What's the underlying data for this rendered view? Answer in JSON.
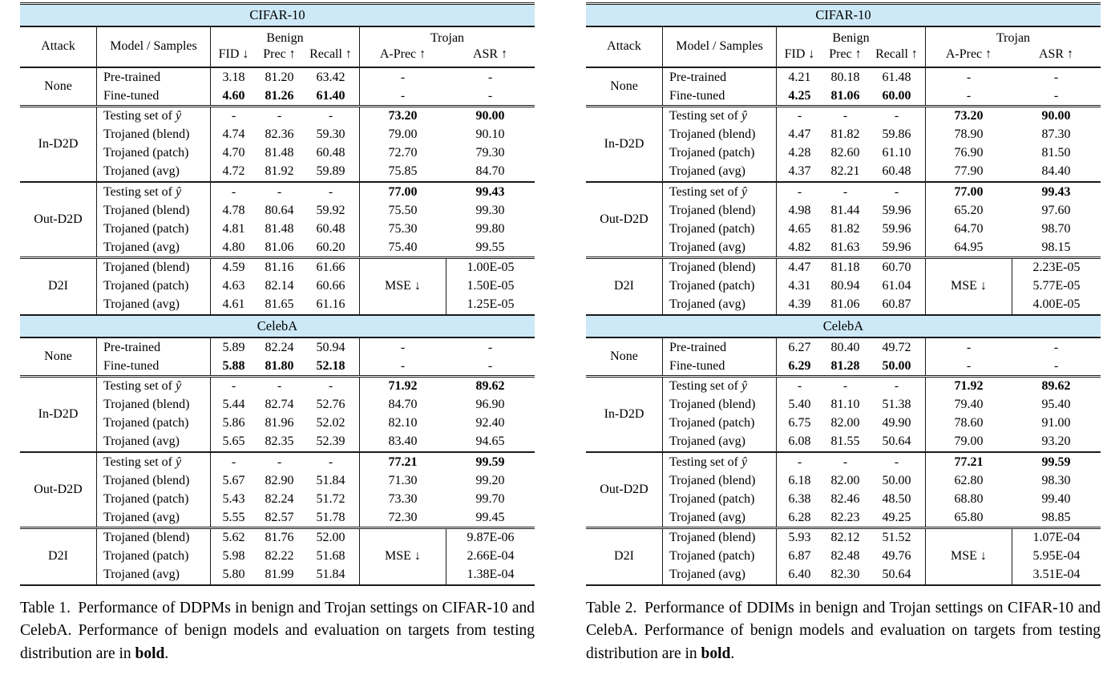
{
  "colors": {
    "band": "#cde9f7",
    "rule": "#1a1a1a",
    "text": "#000000"
  },
  "tables": [
    {
      "caption": {
        "label": "Table 1.",
        "prefix": "Performance of DDPMs in benign and Trojan settings on CIFAR-10 and CelebA. Performance of benign models and evaluation on targets from testing distribution are in ",
        "bold": "bold",
        "suffix": "."
      },
      "header": {
        "attack": "Attack",
        "model": "Model / Samples",
        "groups": [
          "Benign",
          "Trojan"
        ],
        "benign_cols": [
          "FID ↓",
          "Prec ↑",
          "Recall ↑"
        ],
        "trojan_cols": [
          "A-Prec ↑",
          "ASR ↑"
        ],
        "mse_label": "MSE ↓"
      },
      "sections": [
        {
          "band": "CIFAR-10"
        },
        {
          "attack": "None",
          "rows": [
            {
              "model": "Pre-trained",
              "values": [
                "3.18",
                "81.20",
                "63.42",
                "-",
                "-"
              ]
            },
            {
              "model": "Fine-tuned",
              "values": [
                "4.60",
                "81.26",
                "61.40",
                "-",
                "-"
              ],
              "bold": "benign"
            }
          ]
        },
        {
          "attack": "In-D2D",
          "rows": [
            {
              "model": "Testing set of ŷ",
              "values": [
                "-",
                "-",
                "-",
                "73.20",
                "90.00"
              ],
              "bold": "trojan"
            },
            {
              "model": "Trojaned (blend)",
              "values": [
                "4.74",
                "82.36",
                "59.30",
                "79.00",
                "90.10"
              ]
            },
            {
              "model": "Trojaned (patch)",
              "values": [
                "4.70",
                "81.48",
                "60.48",
                "72.70",
                "79.30"
              ]
            },
            {
              "model": "Trojaned (avg)",
              "values": [
                "4.72",
                "81.92",
                "59.89",
                "75.85",
                "84.70"
              ]
            }
          ]
        },
        {
          "attack": "Out-D2D",
          "rows": [
            {
              "model": "Testing set of ŷ",
              "values": [
                "-",
                "-",
                "-",
                "77.00",
                "99.43"
              ],
              "bold": "trojan"
            },
            {
              "model": "Trojaned (blend)",
              "values": [
                "4.78",
                "80.64",
                "59.92",
                "75.50",
                "99.30"
              ]
            },
            {
              "model": "Trojaned (patch)",
              "values": [
                "4.81",
                "81.48",
                "60.48",
                "75.30",
                "99.80"
              ]
            },
            {
              "model": "Trojaned (avg)",
              "values": [
                "4.80",
                "81.06",
                "60.20",
                "75.40",
                "99.55"
              ]
            }
          ]
        },
        {
          "attack": "D2I",
          "mse": true,
          "rows": [
            {
              "model": "Trojaned (blend)",
              "values": [
                "4.59",
                "81.16",
                "61.66",
                "1.00E-05"
              ]
            },
            {
              "model": "Trojaned (patch)",
              "values": [
                "4.63",
                "82.14",
                "60.66",
                "1.50E-05"
              ]
            },
            {
              "model": "Trojaned (avg)",
              "values": [
                "4.61",
                "81.65",
                "61.16",
                "1.25E-05"
              ]
            }
          ]
        },
        {
          "band": "CelebA"
        },
        {
          "attack": "None",
          "rows": [
            {
              "model": "Pre-trained",
              "values": [
                "5.89",
                "82.24",
                "50.94",
                "-",
                "-"
              ]
            },
            {
              "model": "Fine-tuned",
              "values": [
                "5.88",
                "81.80",
                "52.18",
                "-",
                "-"
              ],
              "bold": "benign"
            }
          ]
        },
        {
          "attack": "In-D2D",
          "rows": [
            {
              "model": "Testing set of ŷ",
              "values": [
                "-",
                "-",
                "-",
                "71.92",
                "89.62"
              ],
              "bold": "trojan"
            },
            {
              "model": "Trojaned (blend)",
              "values": [
                "5.44",
                "82.74",
                "52.76",
                "84.70",
                "96.90"
              ]
            },
            {
              "model": "Trojaned (patch)",
              "values": [
                "5.86",
                "81.96",
                "52.02",
                "82.10",
                "92.40"
              ]
            },
            {
              "model": "Trojaned (avg)",
              "values": [
                "5.65",
                "82.35",
                "52.39",
                "83.40",
                "94.65"
              ]
            }
          ]
        },
        {
          "attack": "Out-D2D",
          "rows": [
            {
              "model": "Testing set of ŷ",
              "values": [
                "-",
                "-",
                "-",
                "77.21",
                "99.59"
              ],
              "bold": "trojan"
            },
            {
              "model": "Trojaned (blend)",
              "values": [
                "5.67",
                "82.90",
                "51.84",
                "71.30",
                "99.20"
              ]
            },
            {
              "model": "Trojaned (patch)",
              "values": [
                "5.43",
                "82.24",
                "51.72",
                "73.30",
                "99.70"
              ]
            },
            {
              "model": "Trojaned (avg)",
              "values": [
                "5.55",
                "82.57",
                "51.78",
                "72.30",
                "99.45"
              ]
            }
          ]
        },
        {
          "attack": "D2I",
          "mse": true,
          "rows": [
            {
              "model": "Trojaned (blend)",
              "values": [
                "5.62",
                "81.76",
                "52.00",
                "9.87E-06"
              ]
            },
            {
              "model": "Trojaned (patch)",
              "values": [
                "5.98",
                "82.22",
                "51.68",
                "2.66E-04"
              ]
            },
            {
              "model": "Trojaned (avg)",
              "values": [
                "5.80",
                "81.99",
                "51.84",
                "1.38E-04"
              ]
            }
          ]
        }
      ]
    },
    {
      "caption": {
        "label": "Table 2.",
        "prefix": "Performance of DDIMs in benign and Trojan settings on CIFAR-10 and CelebA. Performance of benign models and evaluation on targets from testing distribution are in ",
        "bold": "bold",
        "suffix": "."
      },
      "header": {
        "attack": "Attack",
        "model": "Model / Samples",
        "groups": [
          "Benign",
          "Trojan"
        ],
        "benign_cols": [
          "FID ↓",
          "Prec ↑",
          "Recall ↑"
        ],
        "trojan_cols": [
          "A-Prec ↑",
          "ASR ↑"
        ],
        "mse_label": "MSE ↓"
      },
      "sections": [
        {
          "band": "CIFAR-10"
        },
        {
          "attack": "None",
          "rows": [
            {
              "model": "Pre-trained",
              "values": [
                "4.21",
                "80.18",
                "61.48",
                "-",
                "-"
              ]
            },
            {
              "model": "Fine-tuned",
              "values": [
                "4.25",
                "81.06",
                "60.00",
                "-",
                "-"
              ],
              "bold": "benign"
            }
          ]
        },
        {
          "attack": "In-D2D",
          "rows": [
            {
              "model": "Testing set of ŷ",
              "values": [
                "-",
                "-",
                "-",
                "73.20",
                "90.00"
              ],
              "bold": "trojan"
            },
            {
              "model": "Trojaned (blend)",
              "values": [
                "4.47",
                "81.82",
                "59.86",
                "78.90",
                "87.30"
              ]
            },
            {
              "model": "Trojaned (patch)",
              "values": [
                "4.28",
                "82.60",
                "61.10",
                "76.90",
                "81.50"
              ]
            },
            {
              "model": "Trojaned (avg)",
              "values": [
                "4.37",
                "82.21",
                "60.48",
                "77.90",
                "84.40"
              ]
            }
          ]
        },
        {
          "attack": "Out-D2D",
          "rows": [
            {
              "model": "Testing set of ŷ",
              "values": [
                "-",
                "-",
                "-",
                "77.00",
                "99.43"
              ],
              "bold": "trojan"
            },
            {
              "model": "Trojaned (blend)",
              "values": [
                "4.98",
                "81.44",
                "59.96",
                "65.20",
                "97.60"
              ]
            },
            {
              "model": "Trojaned (patch)",
              "values": [
                "4.65",
                "81.82",
                "59.96",
                "64.70",
                "98.70"
              ]
            },
            {
              "model": "Trojaned (avg)",
              "values": [
                "4.82",
                "81.63",
                "59.96",
                "64.95",
                "98.15"
              ]
            }
          ]
        },
        {
          "attack": "D2I",
          "mse": true,
          "rows": [
            {
              "model": "Trojaned (blend)",
              "values": [
                "4.47",
                "81.18",
                "60.70",
                "2.23E-05"
              ]
            },
            {
              "model": "Trojaned (patch)",
              "values": [
                "4.31",
                "80.94",
                "61.04",
                "5.77E-05"
              ]
            },
            {
              "model": "Trojaned (avg)",
              "values": [
                "4.39",
                "81.06",
                "60.87",
                "4.00E-05"
              ]
            }
          ]
        },
        {
          "band": "CelebA"
        },
        {
          "attack": "None",
          "rows": [
            {
              "model": "Pre-trained",
              "values": [
                "6.27",
                "80.40",
                "49.72",
                "-",
                "-"
              ]
            },
            {
              "model": "Fine-tuned",
              "values": [
                "6.29",
                "81.28",
                "50.00",
                "-",
                "-"
              ],
              "bold": "benign"
            }
          ]
        },
        {
          "attack": "In-D2D",
          "rows": [
            {
              "model": "Testing set of ŷ",
              "values": [
                "-",
                "-",
                "-",
                "71.92",
                "89.62"
              ],
              "bold": "trojan"
            },
            {
              "model": "Trojaned (blend)",
              "values": [
                "5.40",
                "81.10",
                "51.38",
                "79.40",
                "95.40"
              ]
            },
            {
              "model": "Trojaned (patch)",
              "values": [
                "6.75",
                "82.00",
                "49.90",
                "78.60",
                "91.00"
              ]
            },
            {
              "model": "Trojaned (avg)",
              "values": [
                "6.08",
                "81.55",
                "50.64",
                "79.00",
                "93.20"
              ]
            }
          ]
        },
        {
          "attack": "Out-D2D",
          "rows": [
            {
              "model": "Testing set of ŷ",
              "values": [
                "-",
                "-",
                "-",
                "77.21",
                "99.59"
              ],
              "bold": "trojan"
            },
            {
              "model": "Trojaned (blend)",
              "values": [
                "6.18",
                "82.00",
                "50.00",
                "62.80",
                "98.30"
              ]
            },
            {
              "model": "Trojaned (patch)",
              "values": [
                "6.38",
                "82.46",
                "48.50",
                "68.80",
                "99.40"
              ]
            },
            {
              "model": "Trojaned (avg)",
              "values": [
                "6.28",
                "82.23",
                "49.25",
                "65.80",
                "98.85"
              ]
            }
          ]
        },
        {
          "attack": "D2I",
          "mse": true,
          "rows": [
            {
              "model": "Trojaned (blend)",
              "values": [
                "5.93",
                "82.12",
                "51.52",
                "1.07E-04"
              ]
            },
            {
              "model": "Trojaned (patch)",
              "values": [
                "6.87",
                "82.48",
                "49.76",
                "5.95E-04"
              ]
            },
            {
              "model": "Trojaned (avg)",
              "values": [
                "6.40",
                "82.30",
                "50.64",
                "3.51E-04"
              ]
            }
          ]
        }
      ]
    }
  ]
}
